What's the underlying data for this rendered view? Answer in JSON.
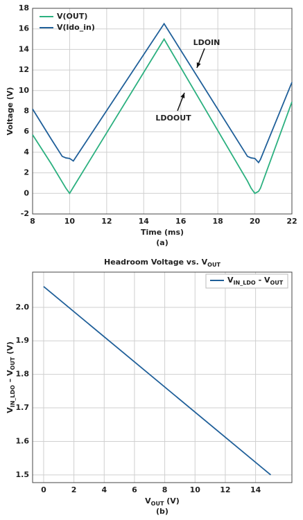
{
  "chart_data": [
    {
      "type": "line",
      "xlabel": "Time (ms)",
      "ylabel": "Voltage (V)",
      "caption": "(a)",
      "x": [
        8,
        9,
        9.6,
        9.8,
        10,
        10.2,
        15.1,
        19.6,
        19.8,
        20,
        20.2,
        20.3,
        22
      ],
      "series": [
        {
          "name": "V(OUT)",
          "color": "#2bb07f",
          "values": [
            5.7,
            2.9,
            1.1,
            0.5,
            0,
            0.6,
            15,
            1.2,
            0.5,
            0,
            0.2,
            0.5,
            8.9
          ]
        },
        {
          "name": "V(ldo_in)",
          "color": "#1f5f99",
          "values": [
            8.2,
            5.3,
            3.6,
            3.45,
            3.4,
            3.15,
            16.5,
            3.6,
            3.45,
            3.4,
            3.0,
            3.3,
            10.8
          ]
        }
      ],
      "xlim": [
        8,
        22
      ],
      "ylim": [
        -2,
        18
      ],
      "xticks": [
        8,
        10,
        12,
        14,
        16,
        18,
        20,
        22
      ],
      "yticks": [
        -2,
        0,
        2,
        4,
        6,
        8,
        10,
        12,
        14,
        16,
        18
      ],
      "grid": true,
      "legend": "upper left",
      "annotations": [
        "LDOIN",
        "LDOOUT"
      ]
    },
    {
      "type": "line",
      "title": [
        "Headroom Voltage vs. V",
        "OUT"
      ],
      "xlabel": [
        "V",
        "OUT",
        " (V)"
      ],
      "ylabel": [
        "V",
        "IN_LDO",
        " – V",
        "OUT",
        " (V)"
      ],
      "caption": "(b)",
      "x": [
        0,
        15
      ],
      "series": [
        {
          "name": [
            "V",
            "IN_LDO",
            " - V",
            "OUT"
          ],
          "color": "#1f5f99",
          "values": [
            2.062,
            1.5
          ]
        }
      ],
      "xlim": [
        -0.73,
        16.4
      ],
      "ylim": [
        1.477,
        2.105
      ],
      "xticks": [
        0,
        2,
        4,
        6,
        8,
        10,
        12,
        14
      ],
      "yticks": [
        {
          "value": 1.5,
          "label": "1.5"
        },
        1.6,
        1.7,
        1.8,
        1.9,
        {
          "value": 2,
          "label": "2.0"
        }
      ],
      "grid": true,
      "legend": "upper right"
    }
  ]
}
